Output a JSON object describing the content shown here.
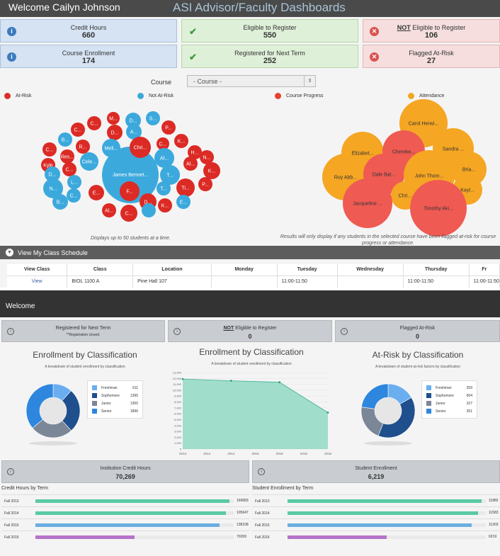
{
  "header": {
    "welcome": "Welcome Cailyn Johnson",
    "title": "ASI Advisor/Faculty Dashboards"
  },
  "cards": [
    {
      "label": "Credit Hours",
      "value": "660",
      "type": "info"
    },
    {
      "label": "Eligible to Register",
      "value": "550",
      "type": "ok"
    },
    {
      "label_prefix": "NOT",
      "label": " Eligible to Register",
      "value": "106",
      "type": "bad"
    },
    {
      "label": "Course Enrollment",
      "value": "174",
      "type": "info"
    },
    {
      "label": "Registered for Next Term",
      "value": "252",
      "type": "ok"
    },
    {
      "label": "Flagged At-Risk",
      "value": "27",
      "type": "bad"
    }
  ],
  "course_filter": {
    "label": "Course",
    "selected": "- Course -"
  },
  "legend": [
    {
      "label": "At-Risk",
      "color": "#d9302c"
    },
    {
      "label": "Not At-Risk",
      "color": "#3ca7d9"
    },
    {
      "label": "Course Progress",
      "color": "#e8412f"
    },
    {
      "label": "Attendance",
      "color": "#f5a623"
    }
  ],
  "bubble_notes": {
    "left": "Displays up to 50 students at a time.",
    "right": "Results will only display if any students in the selected course have been flagged at-risk for course progress or attendance."
  },
  "students": {
    "center": "James Bennet...",
    "left_labels": [
      "M...",
      "C...",
      "D...",
      "S...",
      "C...",
      "B...",
      "D...",
      "A...",
      "P...",
      "K...",
      "Meli...",
      "Chri...",
      "C...",
      "R...",
      "C...",
      "Res...",
      "Cele...",
      "Al...",
      "H...",
      "Kyle",
      "C...",
      "T...",
      "Al...",
      "N...",
      "D...",
      "L...",
      "K...",
      "P...",
      "Ti...",
      "N...",
      "C...",
      "E...",
      "F...",
      "B...",
      "T...",
      "D...",
      "K...",
      "E...",
      "Al...",
      "C..."
    ],
    "right_labels": [
      "Carol Herwi...",
      "Elizabet...",
      "Chereke...",
      "Sandra ...",
      "Roy Abb...",
      "Dale Bat...",
      "John Thom...",
      "Bria...",
      "Kayl...",
      "Chri...",
      "Jacqueline ...",
      "Timothy Aki..."
    ]
  },
  "schedule": {
    "bar_label": "View My Class Schedule",
    "columns": [
      "View Class",
      "Class",
      "Location",
      "Monday",
      "Tuesday",
      "Wednesday",
      "Thursday",
      "Fr"
    ],
    "rows": [
      {
        "view": "View",
        "class": "BIOL 1100 A",
        "location": "Pine Hall 107",
        "monday": "",
        "tuesday": "11:00-11:50",
        "wednesday": "",
        "thursday": "11:00-11:50",
        "friday": "11:00-11:50"
      }
    ]
  },
  "institution": {
    "welcome": "Welcome",
    "cards": [
      {
        "label": "Registered for Next Term",
        "sub": "**Registration closed."
      },
      {
        "label_prefix": "NOT",
        "label": " Eligible to Register",
        "value": "0"
      },
      {
        "label": "Flagged At-Risk",
        "value": "0"
      }
    ],
    "enroll_title": "Enrollment by Classification",
    "enroll_sub": "A breakdown of student enrollment by classification",
    "enroll_legend": [
      {
        "name": "Freshman",
        "count": "611",
        "color": "#6aaef0"
      },
      {
        "name": "Sophomore",
        "count": "1395",
        "color": "#1f4f8c"
      },
      {
        "name": "Junior",
        "count": "1350",
        "color": "#7b8797"
      },
      {
        "name": "Senior",
        "count": "1896",
        "color": "#2e86de"
      }
    ],
    "trend_title": "Enrollment by Classification",
    "trend_sub": "A breakdown of student enrollment by classification",
    "risk_title": "At-Risk by Classification",
    "risk_sub": "A breakdown of student at-risk factors by classification",
    "risk_legend": [
      {
        "name": "Freshman",
        "count": "259",
        "color": "#6aaef0"
      },
      {
        "name": "Sophomore",
        "count": "604",
        "color": "#1f4f8c"
      },
      {
        "name": "Junior",
        "count": "327",
        "color": "#7b8797"
      },
      {
        "name": "Senior",
        "count": "351",
        "color": "#2e86de"
      }
    ],
    "credit_card": {
      "label": "Institution Credit Hours",
      "value": "70,269"
    },
    "enroll_card": {
      "label": "Student Enrollment",
      "value": "6,219"
    },
    "credit_bars_title": "Credit Hours by Term",
    "enroll_bars_title": "Student Enrollment by Term"
  },
  "chart_data": [
    {
      "type": "area",
      "title": "Enrollment by Classification",
      "x": [
        "2013",
        "2014",
        "2015",
        "2016"
      ],
      "x_ticks": [
        "2013",
        "2014",
        "2014",
        "2015",
        "2015",
        "2016",
        "2016"
      ],
      "values": [
        11900,
        11600,
        11350,
        6200
      ],
      "ylim": [
        0,
        13000
      ],
      "y_ticks": [
        "13,000",
        "12,000",
        "11,000",
        "10,000",
        "9,000",
        "8,000",
        "7,000",
        "6,000",
        "5,000",
        "4,000",
        "3,000",
        "2,000",
        "1,000",
        "0"
      ],
      "color": "#86d6bd"
    },
    {
      "type": "bar",
      "title": "Credit Hours by Term",
      "categories": [
        "Fall 2013",
        "Fall 2014",
        "Fall 2015",
        "Fall 2016"
      ],
      "values": [
        169683,
        105647,
        138108,
        70269
      ],
      "value_labels": [
        "169683",
        "105647",
        "138108",
        "70269"
      ],
      "fractions": [
        0.98,
        0.96,
        0.93,
        0.5
      ],
      "colors": [
        "#59c9a5",
        "#59c9a5",
        "#6aaee0",
        "#b574c9"
      ]
    },
    {
      "type": "bar",
      "title": "Student Enrollment by Term",
      "categories": [
        "Fall 2013",
        "Fall 2014",
        "Fall 2015",
        "Fall 2016"
      ],
      "values": [
        11882,
        11583,
        11303,
        6219
      ],
      "value_labels": [
        "11882",
        "11583",
        "11303",
        "6219"
      ],
      "fractions": [
        0.98,
        0.96,
        0.93,
        0.5
      ],
      "colors": [
        "#59c9a5",
        "#59c9a5",
        "#6aaee0",
        "#b574c9"
      ]
    },
    {
      "type": "pie",
      "title": "Enrollment by Classification",
      "categories": [
        "Freshman",
        "Sophomore",
        "Junior",
        "Senior"
      ],
      "values": [
        611,
        1395,
        1350,
        1896
      ]
    },
    {
      "type": "pie",
      "title": "At-Risk by Classification",
      "categories": [
        "Freshman",
        "Sophomore",
        "Junior",
        "Senior"
      ],
      "values": [
        259,
        604,
        327,
        351
      ]
    }
  ]
}
